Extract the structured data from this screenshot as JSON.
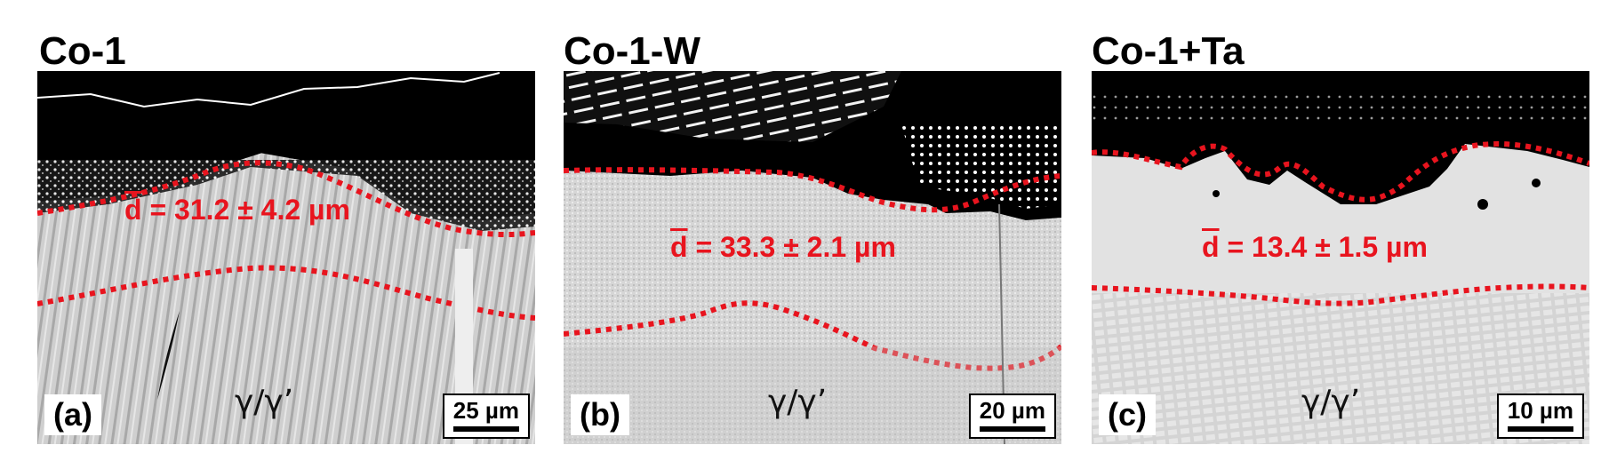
{
  "panels": [
    {
      "title": "Co-1",
      "thickness_label": "= 31.2 ± 4.2 µm",
      "thickness_symbol": "d",
      "phase_label": "γ/γ’",
      "panel_letter": "(a)",
      "scalebar": "25 µm"
    },
    {
      "title": "Co-1-W",
      "thickness_label": "= 33.3 ± 2.1 µm",
      "thickness_symbol": "d",
      "phase_label": "γ/γ’",
      "panel_letter": "(b)",
      "scalebar": "20 µm"
    },
    {
      "title": "Co-1+Ta",
      "thickness_label": "= 13.4 ± 1.5 µm",
      "thickness_symbol": "d",
      "phase_label": "γ/γ’",
      "panel_letter": "(c)",
      "scalebar": "10 µm"
    }
  ],
  "colors": {
    "boundary_line": "#e8141e",
    "oxide": "#000000",
    "substrate_a": "#c9c9c9",
    "substrate_b": "#d8d8d8",
    "substrate_c": "#e0e0e0"
  }
}
